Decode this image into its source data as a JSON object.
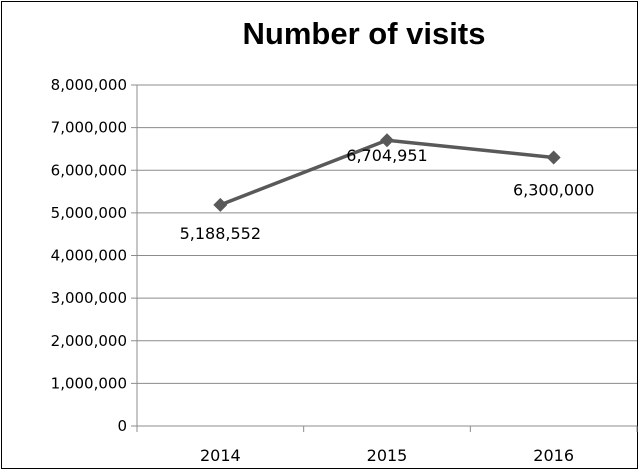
{
  "chart_data": {
    "type": "line",
    "title": "Number of visits",
    "xlabel": "",
    "ylabel": "",
    "categories": [
      "2014",
      "2015",
      "2016"
    ],
    "series": [
      {
        "values": [
          5188552,
          6704951,
          6300000
        ],
        "data_labels": [
          "5,188,552",
          "6,704,951",
          "6,300,000"
        ]
      }
    ],
    "ylim": [
      0,
      8000000
    ],
    "yticks": [
      0,
      1000000,
      2000000,
      3000000,
      4000000,
      5000000,
      6000000,
      7000000,
      8000000
    ],
    "ytick_labels": [
      "0",
      "1,000,000",
      "2,000,000",
      "3,000,000",
      "4,000,000",
      "5,000,000",
      "6,000,000",
      "7,000,000",
      "8,000,000"
    ],
    "grid": true,
    "legend": "none",
    "marker": "diamond",
    "colors": {
      "series": "#595959",
      "grid": "#8c8c8c"
    }
  }
}
